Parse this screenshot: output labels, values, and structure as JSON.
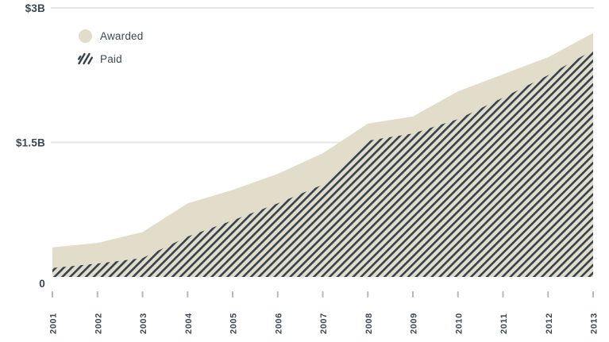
{
  "chart_data": {
    "type": "area",
    "title": "",
    "categories": [
      "2001",
      "2002",
      "2003",
      "2004",
      "2005",
      "2006",
      "2007",
      "2008",
      "2009",
      "2010",
      "2011",
      "2012",
      "2013"
    ],
    "series": [
      {
        "name": "Awarded",
        "pattern": "solid",
        "fill": "#e1ddca",
        "values": [
          0.33,
          0.38,
          0.5,
          0.82,
          0.97,
          1.15,
          1.38,
          1.71,
          1.79,
          2.07,
          2.26,
          2.45,
          2.72
        ]
      },
      {
        "name": "Paid",
        "pattern": "diagonal-hatch",
        "fill": "#e1ddca",
        "hatch_color": "#35424d",
        "values": [
          0.1,
          0.15,
          0.21,
          0.45,
          0.63,
          0.82,
          1.03,
          1.52,
          1.6,
          1.76,
          2.0,
          2.25,
          2.53
        ]
      }
    ],
    "xlabel": "",
    "ylabel": "",
    "unit": "$B",
    "ylim": [
      0,
      3
    ],
    "yticks": [
      {
        "value": 3,
        "label": "$3B"
      },
      {
        "value": 1.5,
        "label": "$1.5B"
      },
      {
        "value": 0,
        "label": "0"
      }
    ],
    "grid": "horizontal",
    "legend_position": "top-left",
    "overlapping": true
  },
  "colors": {
    "awarded_fill": "#e1ddca",
    "hatch_line": "#35424d",
    "text": "#3d4852",
    "gridline": "#e5e5e5",
    "tick": "#b7b7b7",
    "background": "#ffffff"
  }
}
